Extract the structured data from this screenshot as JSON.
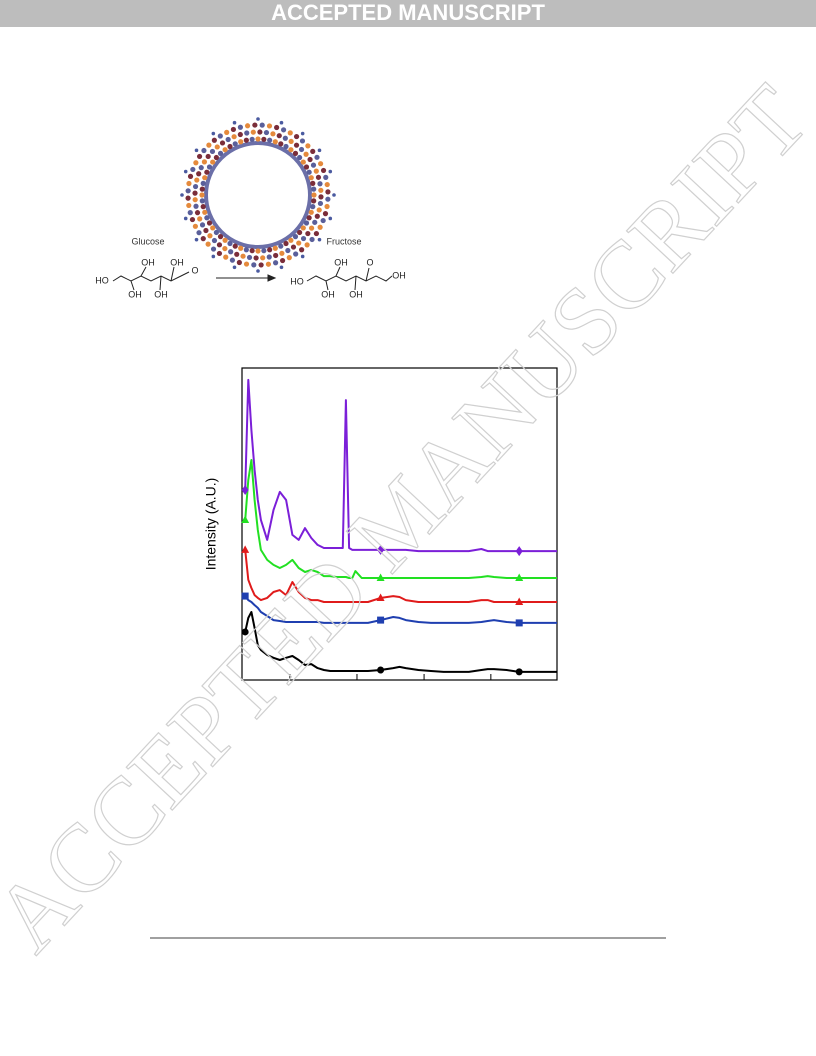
{
  "header": {
    "banner": "ACCEPTED MANUSCRIPT"
  },
  "watermark": "ACCEPTED MANUSCRIPT",
  "graphical_abstract": {
    "reactant": "Glucose",
    "product": "Fructose",
    "reactant_atoms": [
      "HO",
      "OH",
      "OH",
      "OH",
      "OH",
      "O"
    ],
    "product_atoms": [
      "HO",
      "OH",
      "OH",
      "OH",
      "O",
      "OH"
    ]
  },
  "chart_data": {
    "type": "line",
    "y_label": "Intensity (A.U.)",
    "xlim": [
      0,
      100
    ],
    "ylim": [
      0,
      100
    ],
    "xticks": [
      15.2,
      36.5,
      57.8,
      79,
      100
    ],
    "x": [
      1,
      2,
      3,
      4,
      5,
      6,
      8,
      10,
      12,
      14,
      16,
      18,
      20,
      22,
      24,
      26,
      28,
      30,
      32,
      33,
      34,
      35,
      36,
      38,
      40,
      44,
      48,
      50,
      52,
      56,
      60,
      64,
      68,
      72,
      76,
      78,
      80,
      84,
      88,
      90,
      92,
      96,
      100
    ],
    "marker_indices": [
      0,
      25,
      38
    ],
    "series": [
      {
        "color": "#000000",
        "marker": "circle",
        "values": [
          15.4,
          19.9,
          21.8,
          16.7,
          11.2,
          9.6,
          8,
          7.1,
          6.4,
          7.1,
          7.7,
          6.4,
          4.8,
          5.1,
          3.8,
          3.2,
          2.9,
          2.9,
          2.9,
          2.9,
          2.9,
          2.9,
          2.9,
          2.9,
          2.9,
          3.2,
          3.8,
          4.2,
          3.8,
          3.2,
          2.9,
          2.6,
          2.6,
          2.6,
          3.2,
          3.5,
          3.5,
          3.2,
          2.6,
          2.6,
          2.6,
          2.6,
          2.6
        ]
      },
      {
        "color": "#1f3fb0",
        "marker": "square",
        "values": [
          26.9,
          25.6,
          25,
          24,
          23.1,
          21.8,
          20.5,
          19.2,
          18.9,
          18.6,
          18.6,
          18.6,
          18.6,
          18.6,
          18.6,
          18.3,
          18.3,
          18.3,
          18.3,
          18.3,
          18.3,
          18.3,
          18.3,
          18.3,
          18.3,
          19.2,
          20.2,
          19.9,
          19.2,
          18.6,
          18.3,
          18.3,
          18.3,
          18.3,
          18.6,
          18.9,
          19.2,
          18.6,
          18.3,
          18.3,
          18.3,
          18.3,
          18.3
        ]
      },
      {
        "color": "#e01b1b",
        "marker": "triangle",
        "values": [
          41.7,
          32.1,
          29.5,
          27.2,
          26.3,
          25.6,
          26.3,
          28.2,
          28.8,
          27.2,
          31.4,
          28.2,
          26.3,
          25.6,
          25.6,
          25,
          25,
          25,
          25,
          25,
          25,
          25,
          25,
          25,
          25,
          26.3,
          26.9,
          26.6,
          25.6,
          25,
          25,
          25,
          25,
          25,
          25.6,
          25.6,
          25,
          25,
          25,
          25,
          25,
          25,
          25
        ]
      },
      {
        "color": "#22e022",
        "marker": "triangle",
        "values": [
          51.3,
          64.1,
          70.5,
          57.7,
          48.1,
          41.7,
          38.5,
          36.9,
          35.9,
          36.9,
          38.5,
          35.9,
          34.6,
          35.3,
          34.6,
          33.3,
          33.3,
          33,
          33,
          33,
          32.7,
          32.7,
          34.9,
          32.7,
          32.7,
          32.7,
          32.7,
          32.7,
          32.7,
          32.7,
          32.7,
          32.7,
          32.7,
          32.7,
          33,
          33.3,
          33,
          32.7,
          32.7,
          32.7,
          32.7,
          32.7,
          32.7
        ]
      },
      {
        "color": "#7b1fd8",
        "marker": "diamond",
        "values": [
          60.9,
          96.2,
          80.1,
          67.3,
          57.7,
          51.3,
          44.9,
          54.5,
          60.3,
          57.7,
          46.5,
          44.9,
          48.7,
          45.5,
          43.3,
          42.3,
          42.3,
          42.3,
          42.3,
          89.7,
          42.3,
          41.7,
          41.7,
          41.7,
          41.7,
          41.7,
          41.7,
          41.7,
          41.7,
          41.3,
          41.3,
          41.3,
          41.3,
          41.3,
          42,
          41.3,
          41.3,
          41.3,
          41.3,
          41.3,
          41.3,
          41.3,
          41.3
        ]
      }
    ]
  }
}
